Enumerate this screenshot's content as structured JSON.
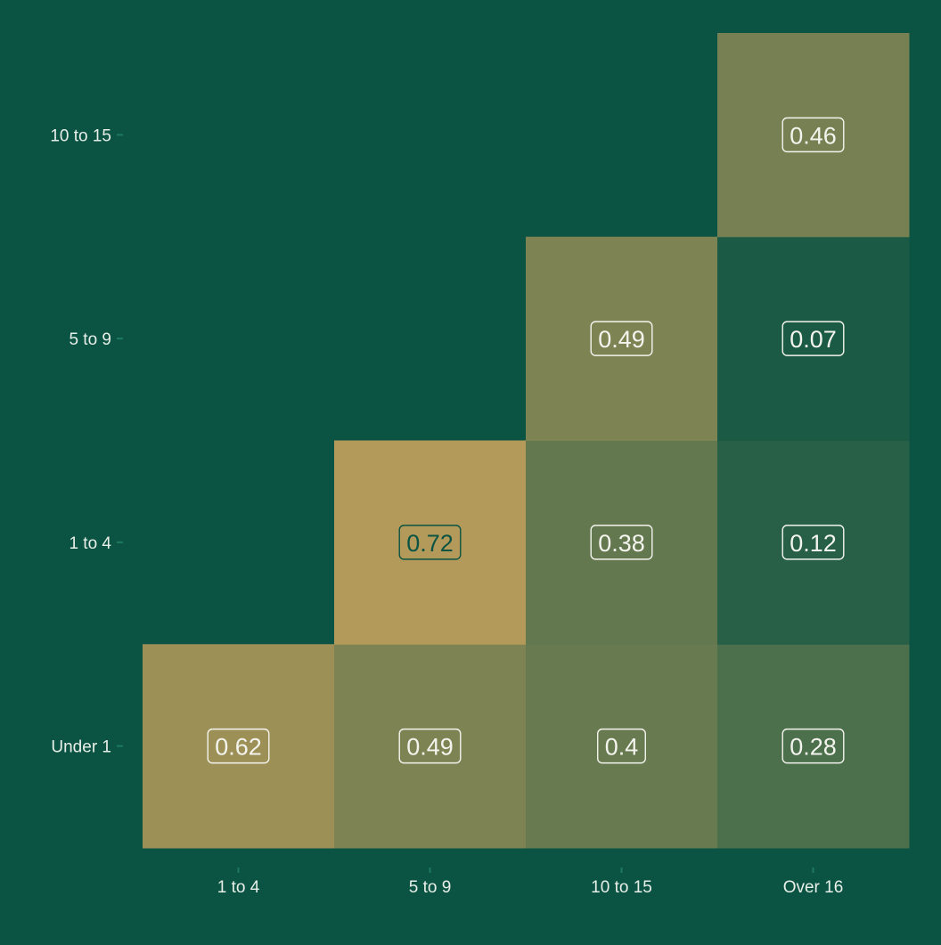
{
  "colors": {
    "background": "#0b5343",
    "tick_mark": "#1d7a5e",
    "tick_text": "#e8efe8",
    "label_light": "#f4f4ee",
    "label_dark": "#0b5343",
    "scale_low": "#0b5343",
    "scale_high": "#b39a5a"
  },
  "chart_data": {
    "type": "heatmap",
    "title": "",
    "xlabel": "",
    "ylabel": "",
    "x_categories": [
      "1 to 4",
      "5 to 9",
      "10 to 15",
      "Over 16"
    ],
    "y_categories": [
      "Under 1",
      "1 to 4",
      "5 to 9",
      "10 to 15"
    ],
    "cells": [
      {
        "x": "1 to 4",
        "y": "Under 1",
        "value": 0.62,
        "label": "0.62"
      },
      {
        "x": "5 to 9",
        "y": "Under 1",
        "value": 0.49,
        "label": "0.49"
      },
      {
        "x": "10 to 15",
        "y": "Under 1",
        "value": 0.4,
        "label": "0.4"
      },
      {
        "x": "Over 16",
        "y": "Under 1",
        "value": 0.28,
        "label": "0.28"
      },
      {
        "x": "5 to 9",
        "y": "1 to 4",
        "value": 0.72,
        "label": "0.72"
      },
      {
        "x": "10 to 15",
        "y": "1 to 4",
        "value": 0.38,
        "label": "0.38"
      },
      {
        "x": "Over 16",
        "y": "1 to 4",
        "value": 0.12,
        "label": "0.12"
      },
      {
        "x": "10 to 15",
        "y": "5 to 9",
        "value": 0.49,
        "label": "0.49"
      },
      {
        "x": "Over 16",
        "y": "5 to 9",
        "value": 0.07,
        "label": "0.07"
      },
      {
        "x": "Over 16",
        "y": "10 to 15",
        "value": 0.46,
        "label": "0.46"
      }
    ],
    "value_range": [
      0,
      0.72
    ],
    "grid": false,
    "legend": "none"
  }
}
